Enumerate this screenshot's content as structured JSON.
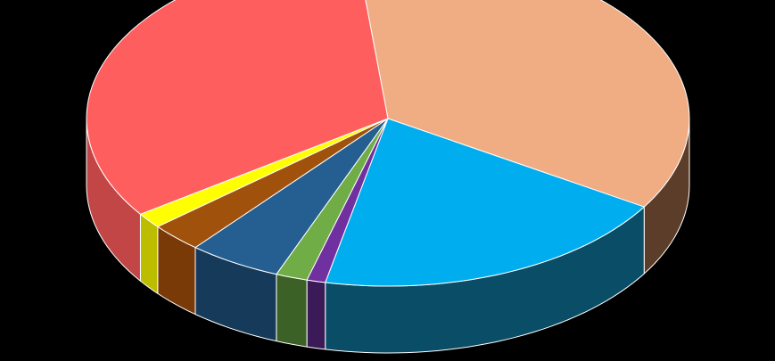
{
  "chart_data": {
    "type": "pie",
    "style": "3d",
    "background": "#000000",
    "legend": "none",
    "data_labels": "none",
    "slices": [
      {
        "value": 35.5,
        "color": "#F0AC82",
        "side_color": "#5C3D2A"
      },
      {
        "value": 19.5,
        "color": "#00AEEF",
        "side_color": "#0A4D66"
      },
      {
        "value": 1.0,
        "color": "#7030A0",
        "side_color": "#3B1A58"
      },
      {
        "value": 1.7,
        "color": "#70AD47",
        "side_color": "#3C6126"
      },
      {
        "value": 5.0,
        "color": "#255E91",
        "side_color": "#163A5A"
      },
      {
        "value": 2.8,
        "color": "#A0520C",
        "side_color": "#7A3A08"
      },
      {
        "value": 1.5,
        "color": "#FFFF00",
        "side_color": "#BDBD00"
      },
      {
        "value": 33.0,
        "color": "#FF5E5E",
        "side_color": "#C24646"
      }
    ]
  }
}
